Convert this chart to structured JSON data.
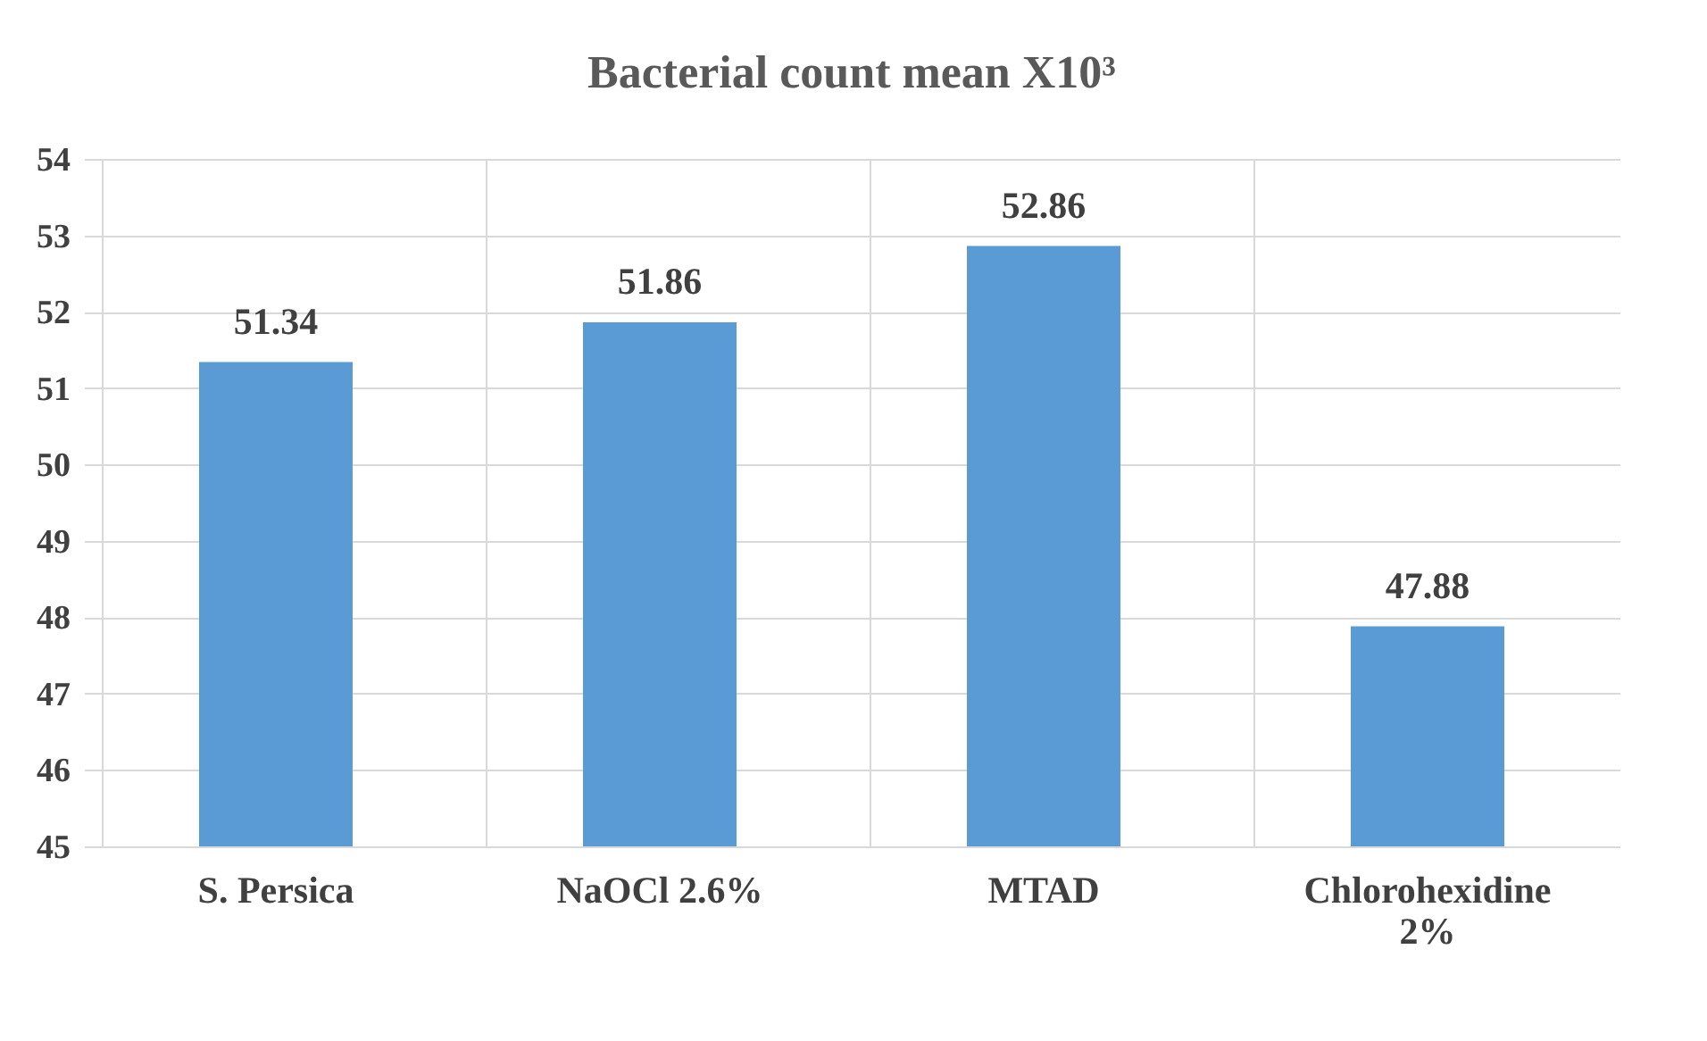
{
  "chart_data": {
    "type": "bar",
    "title": "Bacterial count mean  X10³",
    "categories": [
      "S. Persica",
      "NaOCl 2.6%",
      "MTAD",
      "Chlorohexidine 2%"
    ],
    "values": [
      51.34,
      51.86,
      52.86,
      47.88
    ],
    "color": "#5b9bd5",
    "ylim": [
      45,
      54
    ],
    "yticks": [
      45,
      46,
      47,
      48,
      49,
      50,
      51,
      52,
      53,
      54
    ],
    "grid": true,
    "data_labels": true
  }
}
